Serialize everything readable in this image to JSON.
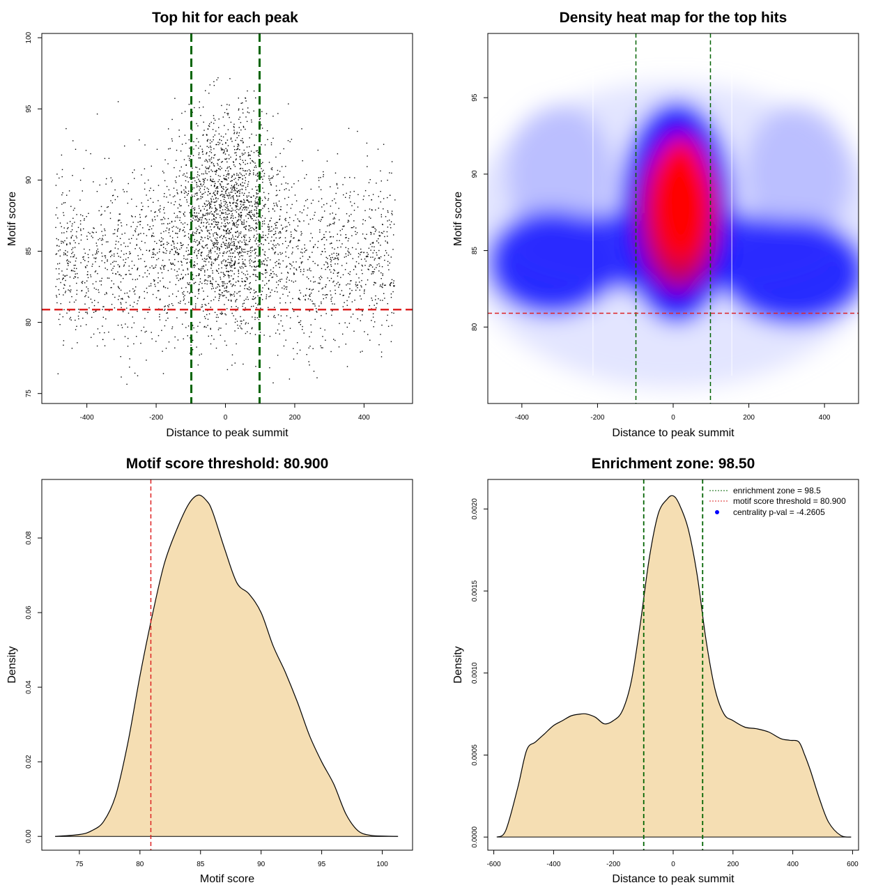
{
  "chart_data": [
    {
      "type": "scatter",
      "title": "Top hit for each peak",
      "xlabel": "Distance to peak summit",
      "ylabel": "Motif score",
      "xlim": [
        -530,
        540
      ],
      "ylim": [
        74.3,
        100.3
      ],
      "xticks": [
        -400,
        -200,
        0,
        200,
        400
      ],
      "yticks": [
        75,
        80,
        85,
        90,
        95,
        100
      ],
      "point_color": "#000000",
      "points_described": "several thousand points, x uniformly spread from -490 to 490, y mostly 78-96 with a dense core near x 0 and y 84-92",
      "enrichment_lines": [
        -98.5,
        98.5
      ],
      "enrichment_color": "#006400",
      "threshold_line": 80.9,
      "threshold_color": "#dd2222"
    },
    {
      "type": "heatmap",
      "title": "Density heat map for the top hits",
      "xlabel": "Distance to peak summit",
      "ylabel": "Motif score",
      "xlim": [
        -490,
        490
      ],
      "ylim": [
        75,
        99.2
      ],
      "xticks": [
        -400,
        -200,
        0,
        200,
        400
      ],
      "yticks": [
        80,
        85,
        90,
        95
      ],
      "color_scale": [
        "#ffffff",
        "#0000ff",
        "#ff0000"
      ],
      "peak": {
        "x": 20,
        "y": 88.3
      },
      "enrichment_lines": [
        -98.5,
        98.5
      ],
      "enrichment_color": "#006400",
      "threshold_line": 80.9,
      "threshold_color": "#dd2222"
    },
    {
      "type": "area",
      "title": "Motif score threshold: 80.900",
      "xlabel": "Motif score",
      "ylabel": "Density",
      "xlim": [
        71.9,
        102.5
      ],
      "ylim": [
        -0.0037,
        0.0957
      ],
      "xticks": [
        75,
        80,
        85,
        90,
        95,
        100
      ],
      "yticks": [
        0.0,
        0.02,
        0.04,
        0.06,
        0.08
      ],
      "ytick_labels": [
        "0.00",
        "0.02",
        "0.04",
        "0.06",
        "0.08"
      ],
      "fill_color": "#f5deb3",
      "x": [
        73,
        75,
        76,
        77,
        78,
        79,
        80,
        81,
        82,
        83,
        84,
        84.8,
        85.5,
        86,
        87,
        88,
        89,
        90,
        91,
        92,
        93,
        94,
        95,
        96,
        97,
        98,
        99,
        100,
        101.3
      ],
      "y": [
        0,
        0.0005,
        0.0015,
        0.004,
        0.011,
        0.025,
        0.043,
        0.059,
        0.073,
        0.082,
        0.089,
        0.0915,
        0.09,
        0.087,
        0.077,
        0.068,
        0.065,
        0.06,
        0.051,
        0.044,
        0.036,
        0.027,
        0.02,
        0.014,
        0.006,
        0.0015,
        0.0003,
        0.0001,
        0
      ],
      "threshold_line": 80.9,
      "threshold_color": "#dd2222"
    },
    {
      "type": "area",
      "title": "Enrichment zone: 98.50",
      "xlabel": "Distance to peak summit",
      "ylabel": "Density",
      "xlim": [
        -620,
        620
      ],
      "ylim": [
        -8e-05,
        0.00218
      ],
      "xticks": [
        -600,
        -400,
        -200,
        0,
        200,
        400,
        600
      ],
      "yticks": [
        0,
        0.0005,
        0.001,
        0.0015,
        0.002
      ],
      "ytick_labels": [
        "0.0000",
        "0.0005",
        "0.0010",
        "0.0015",
        "0.0020"
      ],
      "fill_color": "#f5deb3",
      "x": [
        -590,
        -560,
        -520,
        -490,
        -460,
        -430,
        -400,
        -370,
        -340,
        -310,
        -290,
        -260,
        -230,
        -200,
        -170,
        -140,
        -110,
        -80,
        -50,
        -20,
        0,
        20,
        50,
        80,
        110,
        140,
        170,
        200,
        240,
        280,
        320,
        360,
        390,
        420,
        440,
        460,
        490,
        520,
        560,
        595
      ],
      "y": [
        0,
        4e-05,
        0.0003,
        0.00053,
        0.00058,
        0.00063,
        0.00068,
        0.00071,
        0.00074,
        0.00075,
        0.00075,
        0.00073,
        0.00069,
        0.00071,
        0.00077,
        0.00095,
        0.0013,
        0.0017,
        0.00197,
        0.00206,
        0.00208,
        0.00203,
        0.00188,
        0.0016,
        0.0012,
        0.0009,
        0.00075,
        0.00071,
        0.00067,
        0.00066,
        0.00064,
        0.0006,
        0.00059,
        0.00058,
        0.0005,
        0.0004,
        0.00023,
        9e-05,
        1e-05,
        0
      ],
      "enrichment_lines": [
        -98.5,
        98.5
      ],
      "enrichment_color": "#006400",
      "legend": {
        "placement": "top-right",
        "entries": [
          {
            "label": "enrichment zone = 98.5",
            "color": "#006400",
            "style": "dotted-line"
          },
          {
            "label": "motif score threshold = 80.900",
            "color": "#dd2222",
            "style": "dotted-line"
          },
          {
            "label": "centrality p-val = -4.2605",
            "color": "#0000ff",
            "style": "point"
          }
        ]
      }
    }
  ]
}
